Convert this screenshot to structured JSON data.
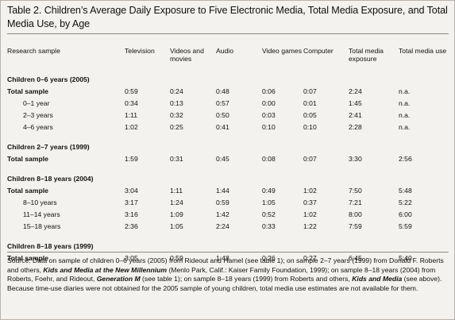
{
  "title": "Table 2. Children’s Average Daily Exposure to Five Electronic Media, Total Media Exposure, and Total Media Use, by Age",
  "headers": [
    "Research sample",
    "Television",
    "Videos and movies",
    "Audio",
    "Video games",
    "Computer",
    "Total media exposure",
    "Total media use"
  ],
  "groups": [
    {
      "label": "Children 0–6 years (2005)",
      "rows": [
        {
          "label": "Total sample",
          "bold": true,
          "indent": false,
          "values": [
            "0:59",
            "0:24",
            "0:48",
            "0:06",
            "0:07",
            "2:24",
            "n.a."
          ]
        },
        {
          "label": "0–1 year",
          "bold": false,
          "indent": true,
          "values": [
            "0:34",
            "0:13",
            "0:57",
            "0:00",
            "0:01",
            "1:45",
            "n.a."
          ]
        },
        {
          "label": "2–3 years",
          "bold": false,
          "indent": true,
          "values": [
            "1:11",
            "0:32",
            "0:50",
            "0:03",
            "0:05",
            "2:41",
            "n.a."
          ]
        },
        {
          "label": "4–6 years",
          "bold": false,
          "indent": true,
          "values": [
            "1:02",
            "0:25",
            "0:41",
            "0:10",
            "0:10",
            "2:28",
            "n.a."
          ]
        }
      ]
    },
    {
      "label": "Children 2–7 years (1999)",
      "rows": [
        {
          "label": "Total sample",
          "bold": true,
          "indent": false,
          "values": [
            "1:59",
            "0:31",
            "0:45",
            "0:08",
            "0:07",
            "3:30",
            "2:56"
          ]
        }
      ]
    },
    {
      "label": "Children 8–18 years (2004)",
      "rows": [
        {
          "label": "Total sample",
          "bold": true,
          "indent": false,
          "values": [
            "3:04",
            "1:11",
            "1:44",
            "0:49",
            "1:02",
            "7:50",
            "5:48"
          ]
        },
        {
          "label": "8–10 years",
          "bold": false,
          "indent": true,
          "values": [
            "3:17",
            "1:24",
            "0:59",
            "1:05",
            "0:37",
            "7:21",
            "5:22"
          ]
        },
        {
          "label": "11–14 years",
          "bold": false,
          "indent": true,
          "values": [
            "3:16",
            "1:09",
            "1:42",
            "0:52",
            "1:02",
            "8:00",
            "6:00"
          ]
        },
        {
          "label": "15–18 years",
          "bold": false,
          "indent": true,
          "values": [
            "2:36",
            "1:05",
            "2:24",
            "0:33",
            "1:22",
            "7:59",
            "5:59"
          ]
        }
      ]
    },
    {
      "label": "Children 8–18 years (1999)",
      "rows": [
        {
          "label": "Total sample",
          "bold": true,
          "indent": false,
          "values": [
            "3:05",
            "0:59",
            "1:48",
            "0:26",
            "0:27",
            "6:45",
            "5:40"
          ]
        }
      ]
    }
  ],
  "footnote": {
    "part1": "Source: Data on sample of children 0–6 years (2005) from Rideout and Hamel (see table 1); on sample 2–7 years (1999) from Donald F. Roberts and others, ",
    "italic1": "Kids and Media at the New Millennium",
    "part2": " (Menlo Park, Calif.: Kaiser Family Foundation, 1999); on sample 8–18 years (2004) from Roberts, Foehr, and Rideout, ",
    "italic2": "Generation M",
    "part3": " (see table 1); on sample 8–18 years (1999) from Roberts and others, ",
    "italic3": "Kids and Media",
    "part4": " (see above). Because time-use diaries were not obtained for the 2005 sample of young children, total media use estimates are not available for them."
  }
}
